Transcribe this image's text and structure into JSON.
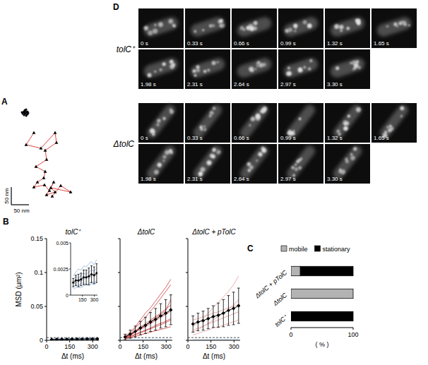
{
  "chart_data": [
    {
      "type": "scatter",
      "panel": "A",
      "xlim": [
        0,
        200
      ],
      "ylim": [
        0,
        280
      ],
      "tick_labels": false,
      "scale_bar": {
        "length": 50,
        "label": "50 nm"
      },
      "series": [
        {
          "color": "#2a5db0",
          "marker": "dot",
          "line_style": "solid",
          "x": [
            40,
            36,
            44,
            32,
            46,
            38,
            42,
            34,
            48,
            40,
            36,
            44,
            38,
            42,
            30,
            46
          ],
          "values": [
            260,
            264,
            256,
            258,
            264,
            268,
            252,
            262,
            260,
            266,
            254,
            262,
            258,
            270,
            262,
            256
          ]
        },
        {
          "color": "#d9322b",
          "marker": "triangle",
          "line_style": "solid",
          "x": [
            64,
            42,
            84,
            124,
            128,
            96,
            100,
            70,
            96,
            92,
            74,
            64,
            94,
            108,
            120,
            100,
            124,
            112,
            168,
            140,
            116
          ],
          "values": [
            204,
            170,
            160,
            204,
            176,
            154,
            128,
            108,
            94,
            76,
            64,
            50,
            56,
            40,
            64,
            28,
            36,
            48,
            36,
            54,
            24
          ]
        }
      ]
    },
    {
      "type": "line",
      "panel": "B",
      "title": "tolC⁺",
      "xlabel": "Δt (ms)",
      "ylabel": "MSD (μm²)",
      "x": [
        33,
        66,
        99,
        132,
        165,
        198,
        231,
        264,
        297,
        330
      ],
      "xlim": [
        0,
        340
      ],
      "xticks": [
        0,
        150,
        300
      ],
      "ylim": [
        0,
        0.15
      ],
      "yticks": [
        0,
        0.05,
        0.1,
        0.15
      ],
      "reference_line": 0.004,
      "series": [
        {
          "color": "#8fb5e0",
          "line_style": "solid",
          "marker": "none",
          "values": [
            0.0008,
            0.001,
            0.0009,
            0.0011,
            0.0012,
            0.001,
            0.0011,
            0.0013,
            0.0012,
            0.0014
          ]
        },
        {
          "color": "#8fb5e0",
          "line_style": "solid",
          "marker": "none",
          "values": [
            0.0015,
            0.0018,
            0.0016,
            0.0019,
            0.0021,
            0.002,
            0.0022,
            0.0024,
            0.0023,
            0.0026
          ]
        },
        {
          "color": "#8fb5e0",
          "line_style": "solid",
          "marker": "none",
          "values": [
            0.0012,
            0.0011,
            0.0014,
            0.0013,
            0.0015,
            0.0017,
            0.0016,
            0.0018,
            0.002,
            0.0019
          ]
        },
        {
          "color": "#8fb5e0",
          "line_style": "solid",
          "marker": "none",
          "values": [
            0.0006,
            0.0007,
            0.0008,
            0.0007,
            0.0009,
            0.001,
            0.0009,
            0.0011,
            0.001,
            0.0012
          ]
        },
        {
          "color": "#8fb5e0",
          "line_style": "solid",
          "marker": "none",
          "values": [
            0.0018,
            0.0022,
            0.0025,
            0.0024,
            0.0028,
            0.0027,
            0.003,
            0.0032,
            0.0029,
            0.0034
          ]
        },
        {
          "color": "#000000",
          "line_style": "solid",
          "marker": "diamond",
          "values": [
            0.0012,
            0.0014,
            0.0014,
            0.0015,
            0.0017,
            0.0017,
            0.0018,
            0.002,
            0.0019,
            0.0021
          ],
          "errors": [
            0.0004,
            0.0005,
            0.0006,
            0.0006,
            0.0007,
            0.0007,
            0.0008,
            0.0008,
            0.0008,
            0.0009
          ]
        }
      ],
      "inset": {
        "xlim": [
          0,
          340
        ],
        "xticks": [
          150,
          300
        ],
        "ylim": [
          0,
          0.005
        ],
        "yticks": [
          0,
          0.0025,
          0.005
        ]
      }
    },
    {
      "type": "line",
      "title": "ΔtolC",
      "xlabel": "Δt (ms)",
      "tick_labels": "x",
      "x": [
        33,
        66,
        99,
        132,
        165,
        198,
        231,
        264,
        297,
        330
      ],
      "xlim": [
        0,
        340
      ],
      "xticks": [
        0,
        150,
        300
      ],
      "ylim": [
        0,
        0.15
      ],
      "yticks": [
        0,
        0.05,
        0.1,
        0.15
      ],
      "reference_line": 0.004,
      "series": [
        {
          "color": "#b8d3ef",
          "line_style": "solid",
          "marker": "none",
          "values": [
            0.001,
            0.0012,
            0.0013,
            0.0013,
            0.0014,
            0.0015,
            0.0015,
            0.0016,
            0.0016,
            0.0017
          ]
        },
        {
          "color": "#cc3b3b",
          "line_style": "solid",
          "marker": "none",
          "values": [
            0.004,
            0.01,
            0.018,
            0.026,
            0.034,
            0.043,
            0.052,
            0.062,
            0.072,
            0.082
          ]
        },
        {
          "color": "#cc3b3b",
          "line_style": "solid",
          "marker": "none",
          "values": [
            0.006,
            0.012,
            0.02,
            0.03,
            0.04,
            0.048,
            0.058,
            0.068,
            0.078,
            0.09
          ]
        },
        {
          "color": "#cc3b3b",
          "line_style": "solid",
          "marker": "none",
          "values": [
            0.003,
            0.007,
            0.012,
            0.016,
            0.02,
            0.025,
            0.029,
            0.034,
            0.038,
            0.043
          ]
        },
        {
          "color": "#cc3b3b",
          "line_style": "solid",
          "marker": "none",
          "values": [
            0.002,
            0.005,
            0.008,
            0.011,
            0.014,
            0.017,
            0.02,
            0.023,
            0.026,
            0.03
          ]
        },
        {
          "color": "#cc3b3b",
          "line_style": "solid",
          "marker": "none",
          "values": [
            0.005,
            0.009,
            0.014,
            0.02,
            0.024,
            0.03,
            0.035,
            0.04,
            0.046,
            0.052
          ]
        },
        {
          "color": "#cc3b3b",
          "line_style": "solid",
          "marker": "none",
          "values": [
            0.003,
            0.006,
            0.009,
            0.012,
            0.015,
            0.018,
            0.022,
            0.025,
            0.028,
            0.032
          ]
        },
        {
          "color": "#cc3b3b",
          "line_style": "solid",
          "marker": "none",
          "values": [
            0.002,
            0.004,
            0.006,
            0.008,
            0.01,
            0.012,
            0.014,
            0.016,
            0.018,
            0.02
          ]
        },
        {
          "color": "#cc3b3b",
          "line_style": "solid",
          "marker": "none",
          "values": [
            0.004,
            0.008,
            0.013,
            0.018,
            0.022,
            0.028,
            0.033,
            0.038,
            0.044,
            0.06
          ]
        },
        {
          "color": "#000000",
          "line_style": "solid",
          "marker": "diamond",
          "values": [
            0.005,
            0.009,
            0.013,
            0.018,
            0.022,
            0.027,
            0.031,
            0.036,
            0.04,
            0.045
          ],
          "errors": [
            0.004,
            0.006,
            0.008,
            0.01,
            0.012,
            0.014,
            0.016,
            0.018,
            0.02,
            0.022
          ]
        }
      ]
    },
    {
      "type": "line",
      "title": "ΔtolC + pTolC",
      "xlabel": "Δt (ms)",
      "tick_labels": "x",
      "x": [
        33,
        66,
        99,
        132,
        165,
        198,
        231,
        264,
        297,
        330
      ],
      "xlim": [
        0,
        340
      ],
      "xticks": [
        0,
        150,
        300
      ],
      "ylim": [
        0,
        0.15
      ],
      "yticks": [
        0,
        0.05,
        0.1,
        0.15
      ],
      "reference_line": 0.004,
      "series": [
        {
          "color": "#b8d3ef",
          "line_style": "solid",
          "marker": "none",
          "values": [
            0.001,
            0.0012,
            0.0013,
            0.0013,
            0.0014,
            0.0015,
            0.0015,
            0.0016,
            0.0016,
            0.0017
          ]
        },
        {
          "color": "#e59a9a",
          "line_style": "solid",
          "marker": "none",
          "values": [
            0.012,
            0.016,
            0.02,
            0.025,
            0.03,
            0.035,
            0.04,
            0.046,
            0.052,
            0.06
          ]
        },
        {
          "color": "#e59a9a",
          "line_style": "solid",
          "marker": "none",
          "values": [
            0.02,
            0.026,
            0.032,
            0.04,
            0.048,
            0.056,
            0.064,
            0.072,
            0.082,
            0.095
          ]
        },
        {
          "color": "#e59a9a",
          "line_style": "solid",
          "marker": "none",
          "values": [
            0.008,
            0.01,
            0.013,
            0.015,
            0.018,
            0.02,
            0.022,
            0.025,
            0.027,
            0.03
          ]
        },
        {
          "color": "#e59a9a",
          "line_style": "solid",
          "marker": "none",
          "values": [
            0.03,
            0.032,
            0.035,
            0.037,
            0.04,
            0.042,
            0.045,
            0.048,
            0.05,
            0.053
          ]
        },
        {
          "color": "#e59a9a",
          "line_style": "solid",
          "marker": "none",
          "values": [
            0.015,
            0.018,
            0.021,
            0.024,
            0.027,
            0.03,
            0.033,
            0.036,
            0.039,
            0.042
          ]
        },
        {
          "color": "#000000",
          "line_style": "solid",
          "marker": "diamond",
          "values": [
            0.024,
            0.027,
            0.029,
            0.032,
            0.035,
            0.037,
            0.04,
            0.044,
            0.047,
            0.051
          ],
          "errors": [
            0.012,
            0.013,
            0.014,
            0.015,
            0.016,
            0.018,
            0.02,
            0.022,
            0.024,
            0.026
          ]
        }
      ]
    },
    {
      "type": "bar",
      "panel": "C",
      "orientation": "horizontal",
      "stacked": true,
      "legend": "top",
      "categories": [
        "ΔtolC + pTolC",
        "ΔtolC",
        "tolC⁺"
      ],
      "series": [
        {
          "name": "mobile",
          "color": "#b3b3b3",
          "values": [
            15,
            100,
            0
          ]
        },
        {
          "name": "stationary",
          "color": "#000000",
          "values": [
            85,
            0,
            100
          ]
        }
      ],
      "xlim": [
        0,
        100
      ],
      "xticks": [
        0,
        100
      ],
      "xlabel": "( % )"
    }
  ],
  "image_panels": {
    "panel": "D",
    "strains": [
      {
        "label": "tolC⁺",
        "frames": [
          "0 s",
          "0.33 s",
          "0.66 s",
          "0.99 s",
          "1.32 s",
          "1.65 s",
          "1.98 s",
          "2.31 s",
          "2.64 s",
          "2.97 s",
          "3.30 s"
        ]
      },
      {
        "label": "ΔtolC",
        "frames": [
          "0 s",
          "0.33 s",
          "0.66 s",
          "0.99 s",
          "1.32 s",
          "1.65 s",
          "1.98 s",
          "2.31 s",
          "2.64 s",
          "2.97 s",
          "3.30 s"
        ]
      }
    ]
  }
}
